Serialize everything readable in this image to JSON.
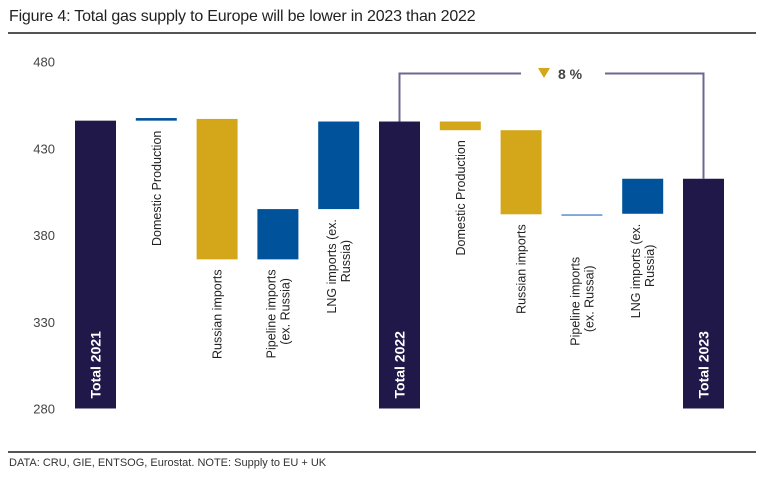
{
  "title": "Figure 4: Total gas supply to Europe will be lower in 2023 than 2022",
  "footnote": "DATA: CRU, GIE, ENTSOG, Eurostat. NOTE: Supply to EU + UK",
  "colors": {
    "total": "#201848",
    "decrease": "#D4A71A",
    "increase": "#00529B",
    "bracket": "#6B6890"
  },
  "chart_data": {
    "type": "waterfall",
    "title": "Figure 4: Total gas supply to Europe will be lower in 2023 than 2022",
    "ylim": [
      280,
      480
    ],
    "yticks": [
      280,
      330,
      380,
      430,
      480
    ],
    "grid": false,
    "annotation": {
      "text": "8 %",
      "icon": "down-triangle",
      "from": "Total 2022",
      "to": "Total 2023"
    },
    "bars": [
      {
        "label": "Total 2021",
        "kind": "total",
        "start": 280,
        "end": 446
      },
      {
        "label": "Domestic Production",
        "kind": "increase",
        "start": 446,
        "end": 447.5
      },
      {
        "label": "Russian imports",
        "kind": "decrease",
        "start": 447,
        "end": 366
      },
      {
        "label": "Pipeline imports (ex. Russia)",
        "kind": "increase",
        "start": 366,
        "end": 395
      },
      {
        "label": "LNG imports (ex. Russia)",
        "kind": "increase",
        "start": 395,
        "end": 445.5
      },
      {
        "label": "Total 2022",
        "kind": "total",
        "start": 280,
        "end": 445.5
      },
      {
        "label": "Domestic Production",
        "kind": "decrease",
        "start": 445.5,
        "end": 440.5
      },
      {
        "label": "Russian imports",
        "kind": "decrease",
        "start": 440.5,
        "end": 392
      },
      {
        "label": "Pipeline imports (ex. Russai)",
        "kind": "decrease-line",
        "start": 392,
        "end": 391.7
      },
      {
        "label": "LNG imports (ex. Russia)",
        "kind": "increase",
        "start": 392.3,
        "end": 412.5
      },
      {
        "label": "Total 2023",
        "kind": "total",
        "start": 280,
        "end": 412.5
      }
    ],
    "label_lines": [
      [
        "Total 2021"
      ],
      [
        "Domestic Production"
      ],
      [
        "Russian imports"
      ],
      [
        "Pipeline imports",
        "(ex. Russia)"
      ],
      [
        "LNG imports (ex.",
        "Russia)"
      ],
      [
        "Total 2022"
      ],
      [
        "Domestic Production"
      ],
      [
        "Russian imports"
      ],
      [
        "Pipeline imports",
        "(ex. Russai)"
      ],
      [
        "LNG imports (ex.",
        "Russia)"
      ],
      [
        "Total 2023"
      ]
    ]
  }
}
